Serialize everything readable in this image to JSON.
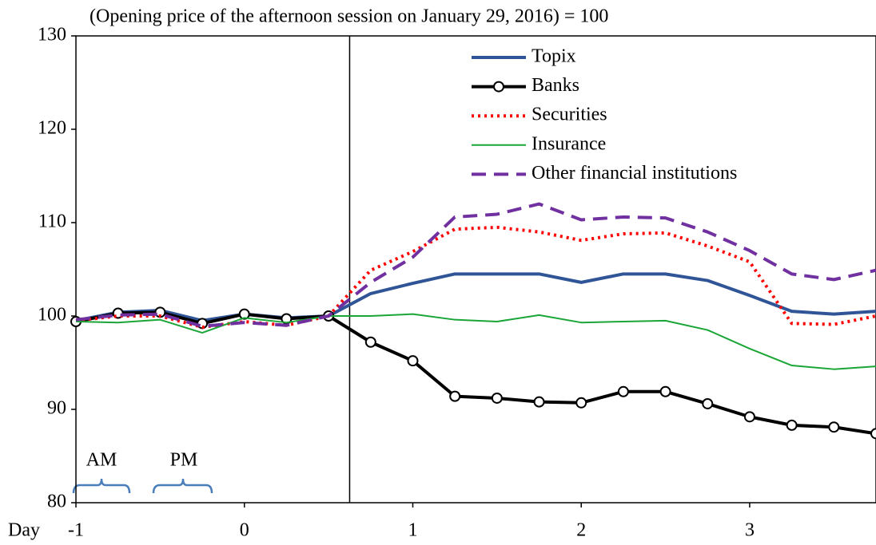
{
  "chart_data": {
    "type": "line",
    "title": "(Opening price of the afternoon session on January 29, 2016) = 100",
    "x_label": "Day",
    "x": [
      -1,
      -0.75,
      -0.5,
      -0.25,
      0,
      0.25,
      0.5,
      0.75,
      1,
      1.25,
      1.5,
      1.75,
      2,
      2.25,
      2.5,
      2.75,
      3,
      3.25,
      3.5,
      3.75
    ],
    "series": [
      {
        "name": "Topix",
        "color": "#2f5597",
        "style": "solid",
        "width": 4,
        "markers": false,
        "values": [
          99.5,
          100.4,
          100.6,
          99.5,
          100.2,
          99.8,
          100.0,
          102.4,
          103.5,
          104.5,
          104.5,
          104.5,
          103.6,
          104.5,
          104.5,
          103.8,
          102.2,
          100.5,
          100.2,
          100.5
        ]
      },
      {
        "name": "Banks",
        "color": "#000000",
        "style": "solid",
        "width": 4,
        "markers": true,
        "values": [
          99.4,
          100.3,
          100.4,
          99.2,
          100.2,
          99.7,
          100.0,
          97.2,
          95.2,
          91.4,
          91.2,
          90.8,
          90.7,
          91.9,
          91.9,
          90.6,
          89.2,
          88.3,
          88.1,
          87.4
        ]
      },
      {
        "name": "Securities",
        "color": "#ff0000",
        "style": "dotted",
        "width": 4,
        "markers": false,
        "values": [
          99.5,
          100.0,
          100.0,
          98.8,
          99.4,
          99.0,
          100.0,
          104.9,
          106.9,
          109.3,
          109.5,
          109.0,
          108.1,
          108.8,
          108.9,
          107.5,
          105.8,
          99.2,
          99.1,
          100.0
        ]
      },
      {
        "name": "Insurance",
        "color": "#1aa637",
        "style": "solid",
        "width": 2,
        "markers": false,
        "values": [
          99.4,
          99.3,
          99.6,
          98.2,
          99.8,
          99.3,
          100.0,
          100.0,
          100.2,
          99.6,
          99.4,
          100.1,
          99.3,
          99.4,
          99.5,
          98.5,
          96.5,
          94.7,
          94.3,
          94.6
        ]
      },
      {
        "name": "Other financial institutions",
        "color": "#7030a0",
        "style": "dashed",
        "width": 4,
        "markers": false,
        "values": [
          99.6,
          100.1,
          100.2,
          98.9,
          99.3,
          99.0,
          100.0,
          103.6,
          106.3,
          110.6,
          110.9,
          112.0,
          110.3,
          110.6,
          110.5,
          109.0,
          107.0,
          104.5,
          103.9,
          104.9
        ]
      }
    ],
    "xlim": [
      -1,
      3.75
    ],
    "xticks": [
      -1,
      0,
      1,
      2,
      3
    ],
    "ylim": [
      80,
      130
    ],
    "yticks": [
      80,
      90,
      100,
      110,
      120,
      130
    ],
    "vline": 0.625,
    "annotations": [
      "AM",
      "PM"
    ],
    "grid": false,
    "legend": "upper right"
  }
}
